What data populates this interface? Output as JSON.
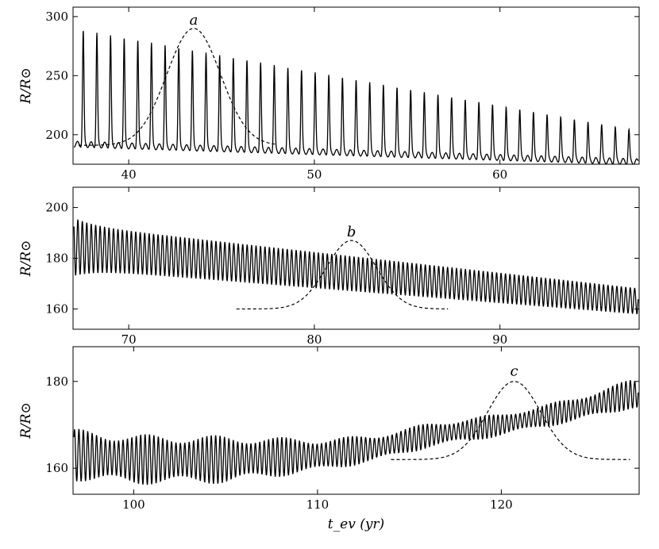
{
  "chart_data": [
    {
      "type": "line",
      "panel": "top",
      "xlim": [
        37,
        67.5
      ],
      "ylim": [
        175,
        308
      ],
      "xticks": [
        40,
        50,
        60
      ],
      "xtick_labels": [
        "40",
        "50",
        "60"
      ],
      "yticks": [
        200,
        250,
        300
      ],
      "ytick_labels": [
        "200",
        "250",
        "300"
      ],
      "ylabel": "R/R⊙",
      "xlabel": "",
      "annotation": "a",
      "annotation_at": [
        43.5,
        292
      ],
      "series": [
        {
          "style": "solid",
          "kind": "pulsation",
          "period": 0.735,
          "peak_start": 290,
          "peak_end": 203,
          "base_start": 192,
          "base_end": 177,
          "peak_width": 0.22
        },
        {
          "style": "dashed",
          "kind": "gaussian",
          "x_range": [
            37.3,
            48
          ],
          "baseline": 191,
          "height": 99,
          "center": 43.5,
          "sigma": 1.45
        }
      ]
    },
    {
      "type": "line",
      "panel": "middle",
      "xlim": [
        67,
        97.5
      ],
      "ylim": [
        152,
        208
      ],
      "xticks": [
        70,
        80,
        90
      ],
      "xtick_labels": [
        "70",
        "80",
        "90"
      ],
      "yticks": [
        160,
        180,
        200
      ],
      "ytick_labels": [
        "160",
        "180",
        "200"
      ],
      "ylabel": "R/R⊙",
      "xlabel": "",
      "annotation": "b",
      "annotation_at": [
        82,
        188
      ],
      "series": [
        {
          "style": "solid",
          "kind": "oscillation",
          "period": 0.24,
          "upper_start": 193,
          "upper_end": 168,
          "lower_start": 176,
          "lower_end": 158
        },
        {
          "style": "dashed",
          "kind": "gaussian",
          "x_range": [
            75.8,
            87.2
          ],
          "baseline": 160,
          "height": 27,
          "center": 82,
          "sigma": 1.35
        }
      ]
    },
    {
      "type": "line",
      "panel": "bottom",
      "xlim": [
        96.7,
        127.5
      ],
      "ylim": [
        154,
        188
      ],
      "xticks": [
        100,
        110,
        120
      ],
      "xtick_labels": [
        "100",
        "110",
        "120"
      ],
      "yticks": [
        160,
        180
      ],
      "ytick_labels": [
        "160",
        "180"
      ],
      "ylabel": "R/R⊙",
      "xlabel": "t_ev (yr)",
      "annotation": "c",
      "annotation_at": [
        120.7,
        181
      ],
      "series": [
        {
          "style": "solid",
          "kind": "oscillation",
          "period": 0.24,
          "center_points": [
            [
              97,
              163
            ],
            [
              100,
              162
            ],
            [
              105,
              162
            ],
            [
              110,
              163
            ],
            [
              113,
              164.5
            ],
            [
              116,
              167.5
            ],
            [
              120,
              170
            ],
            [
              124,
              173.5
            ],
            [
              127,
              177
            ]
          ],
          "amplitude_points": [
            [
              97,
              5
            ],
            [
              105,
              4.6
            ],
            [
              110,
              3.2
            ],
            [
              113,
              2.6
            ],
            [
              117,
              2.3
            ],
            [
              122,
              2.1
            ],
            [
              127,
              2.8
            ]
          ]
        },
        {
          "style": "dashed",
          "kind": "gaussian",
          "x_range": [
            114,
            127
          ],
          "baseline": 162,
          "height": 18,
          "center": 120.7,
          "sigma": 1.45
        }
      ]
    }
  ]
}
